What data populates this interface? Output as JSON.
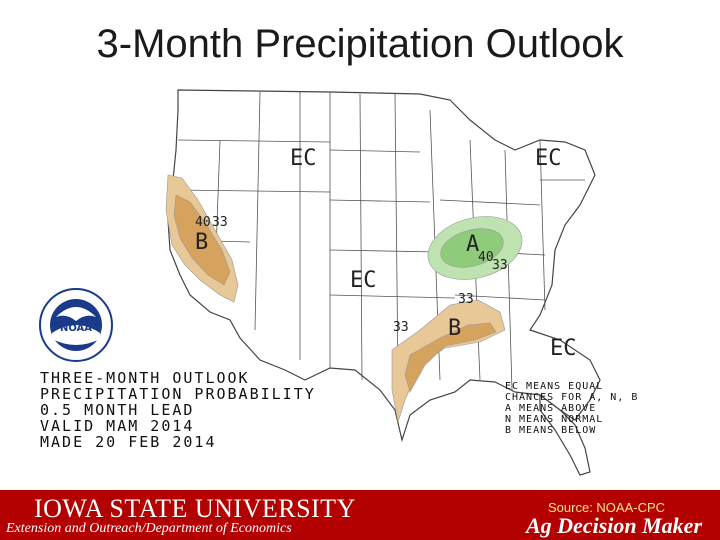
{
  "slide": {
    "title": "3-Month Precipitation Outlook"
  },
  "map": {
    "ec_labels": {
      "north_central": "EC",
      "northeast": "EC",
      "south_central": "EC",
      "southeast": "EC"
    },
    "west": {
      "prob_40": "40",
      "prob_33": "33",
      "category": "B"
    },
    "ohio_valley": {
      "category": "A",
      "prob_40": "40",
      "prob_33": "33"
    },
    "gulf": {
      "prob_33_left": "33",
      "prob_33_top": "33",
      "category": "B"
    },
    "colors": {
      "below_33": "#e8c896",
      "below_40": "#d6a35e",
      "above_33": "#bfe3b0",
      "above_40": "#8ecb7a",
      "border": "#444444"
    }
  },
  "outlook_text": {
    "line1": "THREE-MONTH OUTLOOK",
    "line2": "PRECIPITATION PROBABILITY",
    "line3": "0.5 MONTH LEAD",
    "line4": "VALID MAM 2014",
    "line5": "MADE 20 FEB 2014"
  },
  "legend": {
    "line1": "EC MEANS EQUAL",
    "line2": "CHANCES FOR A, N, B",
    "line3": "A MEANS ABOVE",
    "line4": "N MEANS NORMAL",
    "line5": "B MEANS BELOW"
  },
  "logo": {
    "name": "noaa-logo",
    "text": "NOAA"
  },
  "footer": {
    "university": "IOWA STATE UNIVERSITY",
    "department": "Extension and Outreach/Department of Economics",
    "source": "Source: NOAA-CPC",
    "brand": "Ag Decision Maker",
    "background": "#b30000"
  }
}
